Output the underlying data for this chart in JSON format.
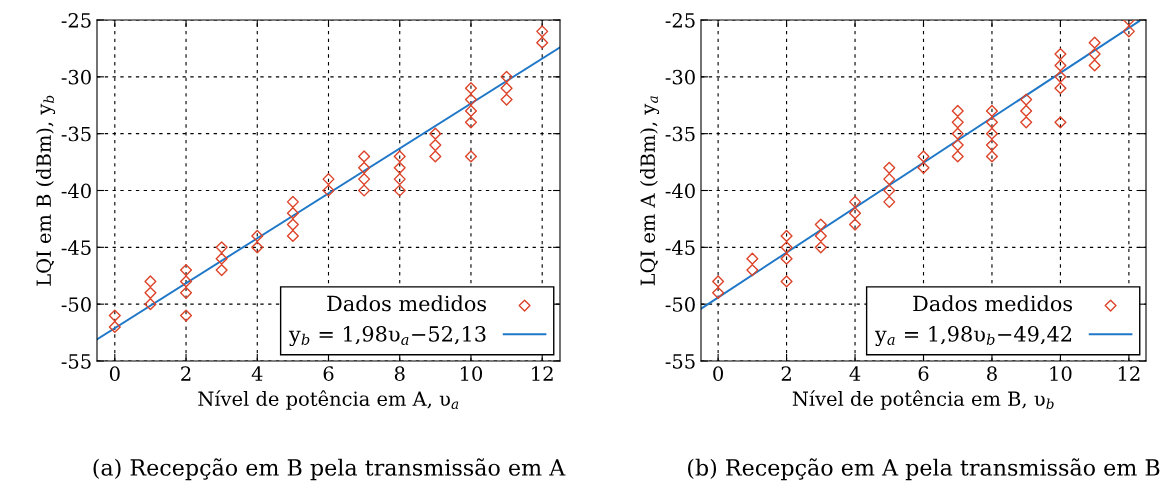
{
  "chart_data": [
    {
      "type": "scatter",
      "xlabel": "Nível de potência em A, υ$_{a}$",
      "ylabel": "LQI em B (dBm), y$_{b}$",
      "xlim": [
        -0.5,
        12.5
      ],
      "xticks": [
        0,
        2,
        4,
        6,
        8,
        10,
        12
      ],
      "ylim": [
        -55,
        -25
      ],
      "yticks": [
        -55,
        -50,
        -45,
        -40,
        -35,
        -30,
        -25
      ],
      "grid": true,
      "legend": "bottom right",
      "annotations": [
        "(a) Recepção em B pela transmissão em A"
      ],
      "series": [
        {
          "name": "Dados medidos",
          "marker": "diamond",
          "color": "#dc4328",
          "x": [
            0,
            0,
            1,
            1,
            1,
            2,
            2,
            2,
            2,
            3,
            3,
            3,
            4,
            4,
            5,
            5,
            5,
            5,
            6,
            6,
            7,
            7,
            7,
            7,
            8,
            8,
            8,
            8,
            9,
            9,
            9,
            10,
            10,
            10,
            10,
            10,
            11,
            11,
            11,
            12,
            12
          ],
          "values": [
            -51,
            -52,
            -48,
            -49,
            -50,
            -47,
            -48,
            -49,
            -51,
            -45,
            -46,
            -47,
            -44,
            -45,
            -41,
            -42,
            -43,
            -44,
            -39,
            -40,
            -37,
            -38,
            -39,
            -40,
            -37,
            -38,
            -39,
            -40,
            -35,
            -36,
            -37,
            -31,
            -32,
            -33,
            -34,
            -37,
            -30,
            -31,
            -32,
            -26,
            -27
          ]
        },
        {
          "name": "y$_{b}$ = 1,98υ$_{a}$−52,13",
          "type": "line",
          "color": "#1f77c8",
          "x": [
            -0.5,
            12.5
          ],
          "values": [
            -53.1,
            -27.4
          ]
        }
      ]
    },
    {
      "type": "scatter",
      "xlabel": "Nível de potência em B, υ$_{b}$",
      "ylabel": "LQI em A (dBm), y$_{a}$",
      "xlim": [
        -0.5,
        12.5
      ],
      "xticks": [
        0,
        2,
        4,
        6,
        8,
        10,
        12
      ],
      "ylim": [
        -55,
        -25
      ],
      "yticks": [
        -55,
        -50,
        -45,
        -40,
        -35,
        -30,
        -25
      ],
      "grid": true,
      "legend": "bottom right",
      "annotations": [
        "(b) Recepção em A pela transmissão em B"
      ],
      "series": [
        {
          "name": "Dados medidos",
          "marker": "diamond",
          "color": "#dc4328",
          "x": [
            0,
            0,
            1,
            1,
            2,
            2,
            2,
            2,
            3,
            3,
            3,
            4,
            4,
            4,
            5,
            5,
            5,
            5,
            6,
            6,
            7,
            7,
            7,
            7,
            7,
            8,
            8,
            8,
            8,
            8,
            9,
            9,
            9,
            10,
            10,
            10,
            10,
            10,
            11,
            11,
            11,
            12,
            12
          ],
          "values": [
            -48,
            -49,
            -46,
            -47,
            -44,
            -45,
            -46,
            -48,
            -43,
            -44,
            -45,
            -41,
            -42,
            -43,
            -38,
            -39,
            -40,
            -41,
            -37,
            -38,
            -33,
            -34,
            -35,
            -36,
            -37,
            -33,
            -34,
            -35,
            -36,
            -37,
            -32,
            -33,
            -34,
            -28,
            -29,
            -30,
            -31,
            -34,
            -27,
            -28,
            -29,
            -25,
            -26
          ]
        },
        {
          "name": "y$_{a}$ = 1,98υ$_{b}$−49,42",
          "type": "line",
          "color": "#1f77c8",
          "x": [
            -0.5,
            12.3
          ],
          "values": [
            -50.4,
            -25.1
          ]
        }
      ]
    }
  ]
}
